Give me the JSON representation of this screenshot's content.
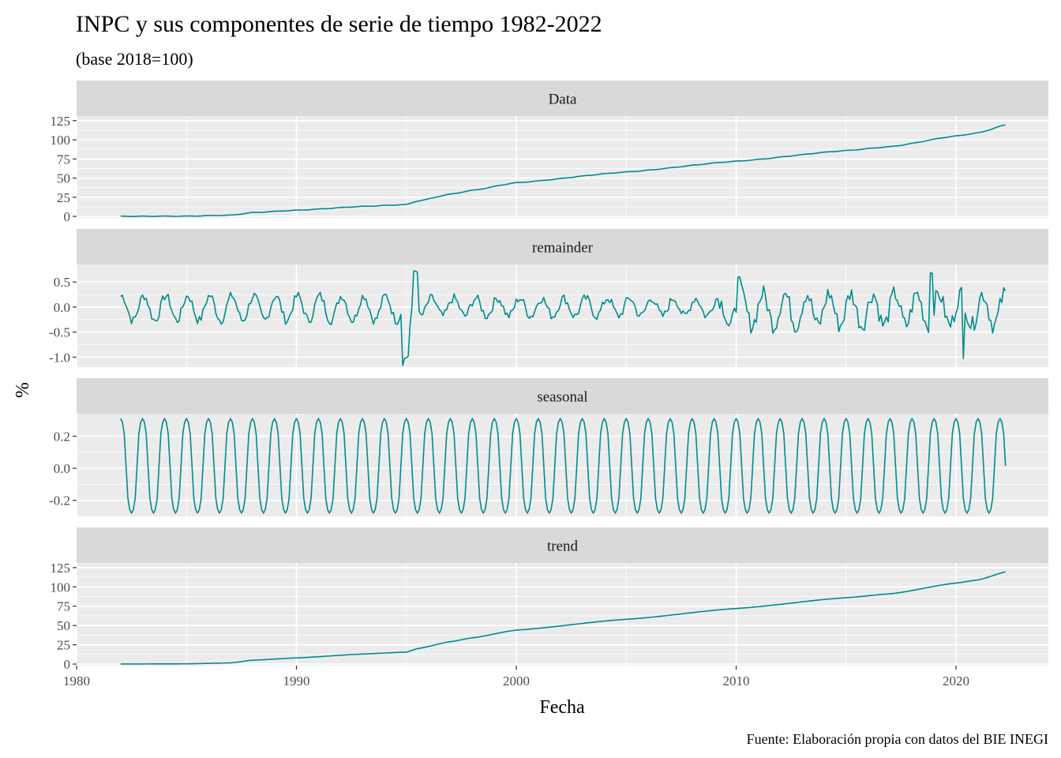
{
  "title": "INPC y sus componentes de serie de tiempo 1982-2022",
  "subtitle": "(base 2018=100)",
  "caption": "Fuente: Elaboración propia con datos del BIE INEGI",
  "xlabel": "Fecha",
  "ylabel": "%",
  "colors": {
    "line": "#008B8B",
    "panel_bg": "#EBEBEB",
    "strip_bg": "#D9D9D9",
    "grid": "#FFFFFF",
    "tick": "#333333"
  },
  "chart_data": {
    "type": "line",
    "x_range": [
      1980,
      2024.2
    ],
    "x_ticks": [
      1980,
      1990,
      2000,
      2010,
      2020
    ],
    "x_start": 1982.0,
    "x_end": 2022.33,
    "facet_scales": "free_y",
    "panels": [
      {
        "name": "Data",
        "ylim": [
          -2,
          131
        ],
        "y_ticks": [
          0,
          25,
          50,
          75,
          100,
          125
        ],
        "y_tick_labels": [
          "0",
          "25",
          "50",
          "75",
          "100",
          "125"
        ],
        "anchors_x": [
          1982,
          1985,
          1987,
          1988,
          1990,
          1993,
          1995,
          1995.5,
          1997,
          1998,
          2000,
          2005,
          2010,
          2015,
          2017,
          2020,
          2021,
          2022.33
        ],
        "anchors_y": [
          0.1,
          0.3,
          1.5,
          5,
          8,
          13,
          15.5,
          20,
          29,
          34,
          44,
          58,
          72,
          86,
          91,
          105,
          109,
          120
        ]
      },
      {
        "name": "remainder",
        "ylim": [
          -1.2,
          0.85
        ],
        "y_ticks": [
          -1.0,
          -0.5,
          0.0,
          0.5
        ],
        "y_tick_labels": [
          "-1.0",
          "-0.5",
          "0.0",
          "0.5"
        ],
        "estimated_range": [
          -1.1,
          0.75
        ]
      },
      {
        "name": "seasonal",
        "ylim": [
          -0.3,
          0.34
        ],
        "y_ticks": [
          -0.2,
          0.0,
          0.2
        ],
        "y_tick_labels": [
          "-0.2",
          "0.0",
          "0.2"
        ],
        "peak": 0.31,
        "trough": -0.28
      },
      {
        "name": "trend",
        "ylim": [
          -2,
          131
        ],
        "y_ticks": [
          0,
          25,
          50,
          75,
          100,
          125
        ],
        "y_tick_labels": [
          "0",
          "25",
          "50",
          "75",
          "100",
          "125"
        ],
        "anchors_x": [
          1982,
          1985,
          1987,
          1988,
          1990,
          1993,
          1995,
          1995.5,
          1997,
          1998,
          2000,
          2005,
          2010,
          2015,
          2017,
          2020,
          2021,
          2022.33
        ],
        "anchors_y": [
          0.1,
          0.3,
          1.5,
          5,
          8,
          13,
          15.5,
          20,
          29,
          34,
          44,
          58,
          72,
          86,
          91,
          105,
          109,
          120
        ]
      }
    ]
  }
}
